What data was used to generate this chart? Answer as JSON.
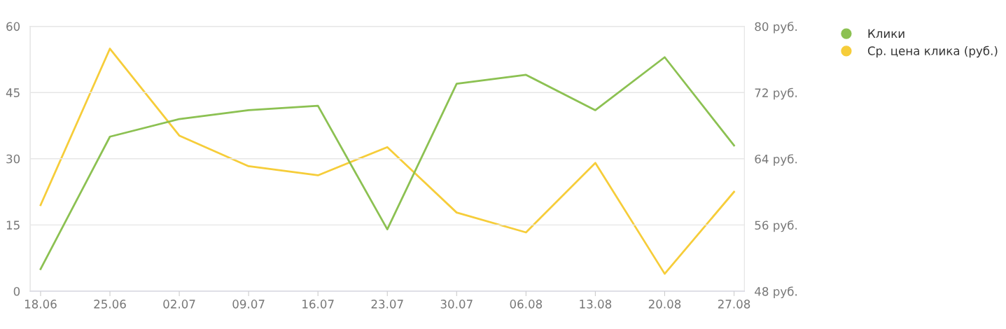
{
  "chart_data": {
    "type": "line",
    "categories": [
      "18.06",
      "25.06",
      "02.07",
      "09.07",
      "16.07",
      "23.07",
      "30.07",
      "06.08",
      "13.08",
      "20.08",
      "27.08"
    ],
    "series": [
      {
        "name": "Клики",
        "color": "#8cc152",
        "values": [
          5,
          35,
          39,
          41,
          42,
          14,
          47,
          49,
          41,
          53,
          33
        ]
      },
      {
        "name": "Ср. цена клика (руб.)",
        "color": "#f6cd3a",
        "axis": "y2",
        "values": [
          58.4,
          77.3,
          66.8,
          63.1,
          62.0,
          65.4,
          57.5,
          55.1,
          63.5,
          50.1,
          60.0
        ]
      }
    ],
    "ylim": [
      0,
      60
    ],
    "yticks": [
      0,
      15,
      30,
      45,
      60
    ],
    "y2lim": [
      48,
      80
    ],
    "y2ticks": [
      {
        "value": 48,
        "label": "48 руб."
      },
      {
        "value": 56,
        "label": "56 руб."
      },
      {
        "value": 64,
        "label": "64 руб."
      },
      {
        "value": 72,
        "label": "72 руб."
      },
      {
        "value": 80,
        "label": "80 руб."
      }
    ],
    "grid": "y",
    "legend": "top right"
  }
}
